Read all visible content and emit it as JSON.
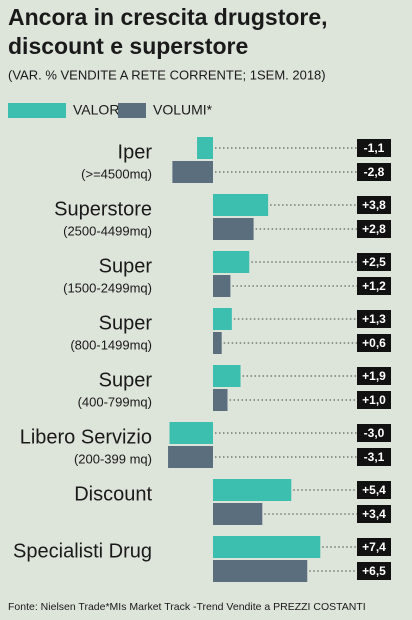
{
  "chart_data": {
    "type": "bar",
    "orientation": "horizontal",
    "title": [
      "Ancora in crescita drugstore,",
      "discount e superstore"
    ],
    "subtitle": "(VAR. % VENDITE A RETE CORRENTE; 1SEM. 2018)",
    "categories": [
      "Iper",
      "Superstore",
      "Super",
      "Super",
      "Super",
      "Libero Servizio",
      "Discount",
      "Specialisti Drug"
    ],
    "category_notes": [
      "(>=4500mq)",
      "(2500-4499mq)",
      "(1500-2499mq)",
      "(800-1499mq)",
      "(400-799mq)",
      "(200-399 mq)",
      null,
      null
    ],
    "series": [
      {
        "name": "VALORI",
        "color": "#3dbfb0",
        "values": [
          -1.1,
          3.8,
          2.5,
          1.3,
          1.9,
          -3.0,
          5.4,
          7.4
        ],
        "value_labels": [
          "-1,1",
          "+3,8",
          "+2,5",
          "+1,3",
          "+1,9",
          "-3,0",
          "+5,4",
          "+7,4"
        ]
      },
      {
        "name": "VOLUMI*",
        "color": "#5a6e7e",
        "values": [
          -2.8,
          2.8,
          1.2,
          0.6,
          1.0,
          -3.1,
          3.4,
          6.5
        ],
        "value_labels": [
          "-2,8",
          "+2,8",
          "+1,2",
          "+0,6",
          "+1,0",
          "-3,1",
          "+3,4",
          "+6,5"
        ]
      }
    ],
    "source": "Fonte: Nielsen Trade*MIs Market Track -Trend Vendite a PREZZI COSTANTI"
  }
}
